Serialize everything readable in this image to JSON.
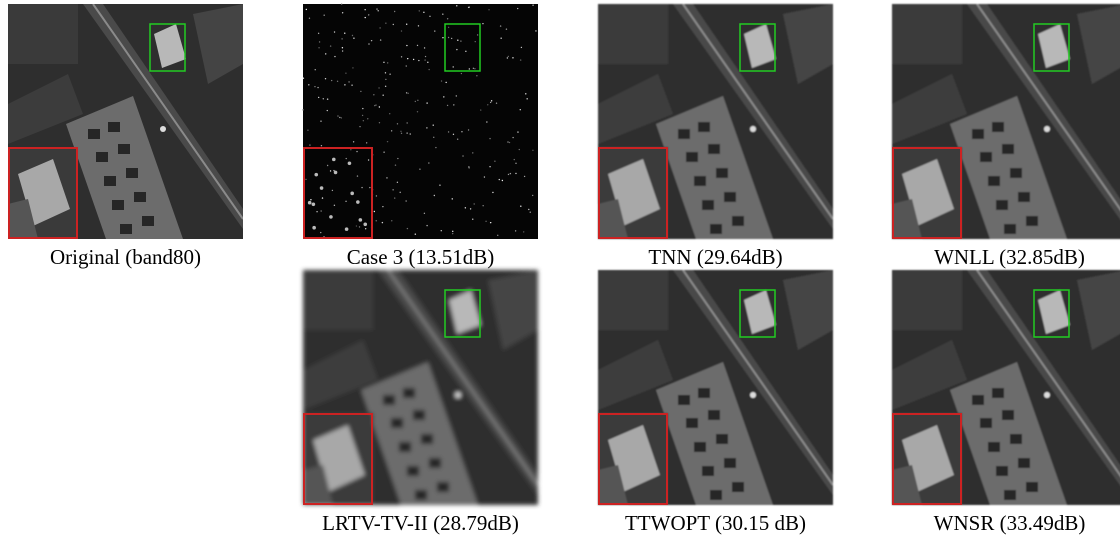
{
  "panels": [
    {
      "caption": "Original (band80)"
    },
    {
      "caption": "Case 3 (13.51dB)"
    },
    {
      "caption": "TNN (29.64dB)"
    },
    {
      "caption": "WNLL (32.85dB)"
    },
    {
      "caption": "LRTV-TV-II (28.79dB)"
    },
    {
      "caption": "TTWOPT (30.15 dB)"
    },
    {
      "caption": "WNSR (33.49dB)"
    }
  ]
}
